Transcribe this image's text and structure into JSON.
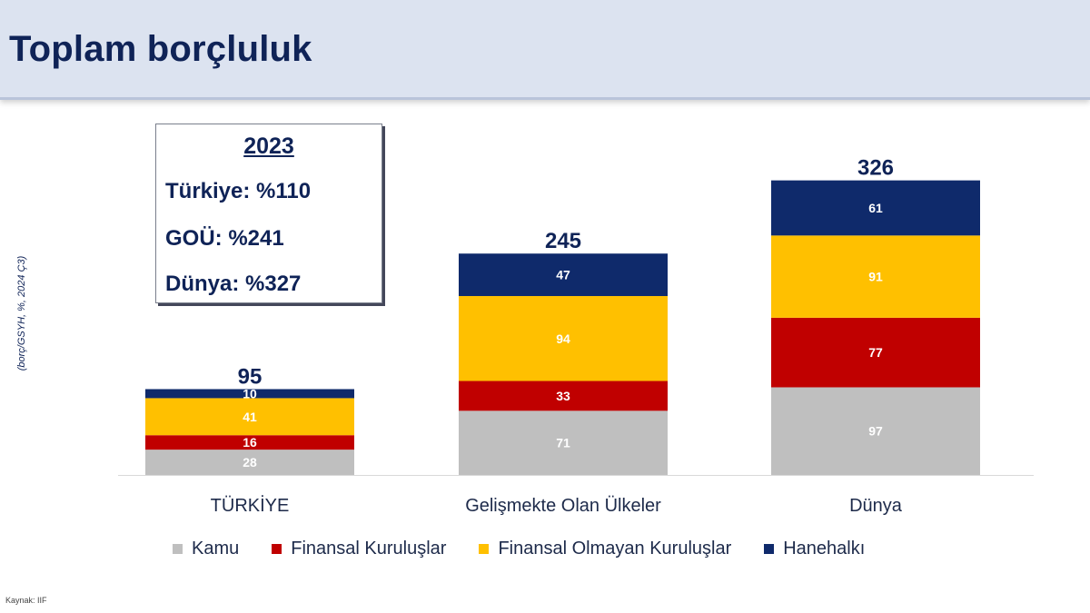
{
  "page": {
    "title": "Toplam borçluluk",
    "y_note": "(borç/GSYH, %, 2024 Ç3)",
    "source": "Kaynak: IIF"
  },
  "info_box": {
    "year": "2023",
    "lines": [
      "Türkiye: %110",
      "GOÜ: %241",
      "Dünya: %327"
    ]
  },
  "chart_data": {
    "type": "bar",
    "stacked": true,
    "categories": [
      "TÜRKİYE",
      "Gelişmekte Olan Ülkeler",
      "Dünya"
    ],
    "totals": [
      95,
      245,
      326
    ],
    "series": [
      {
        "name": "Kamu",
        "color": "#bfbfbf",
        "values": [
          28,
          71,
          97
        ]
      },
      {
        "name": "Finansal Kuruluşlar",
        "color": "#c00000",
        "values": [
          16,
          33,
          77
        ]
      },
      {
        "name": "Finansal Olmayan Kuruluşlar",
        "color": "#ffc000",
        "values": [
          41,
          94,
          91
        ]
      },
      {
        "name": "Hanehalkı",
        "color": "#0f2a6b",
        "values": [
          10,
          47,
          61
        ]
      }
    ],
    "legend_position": "bottom",
    "grid": false
  }
}
